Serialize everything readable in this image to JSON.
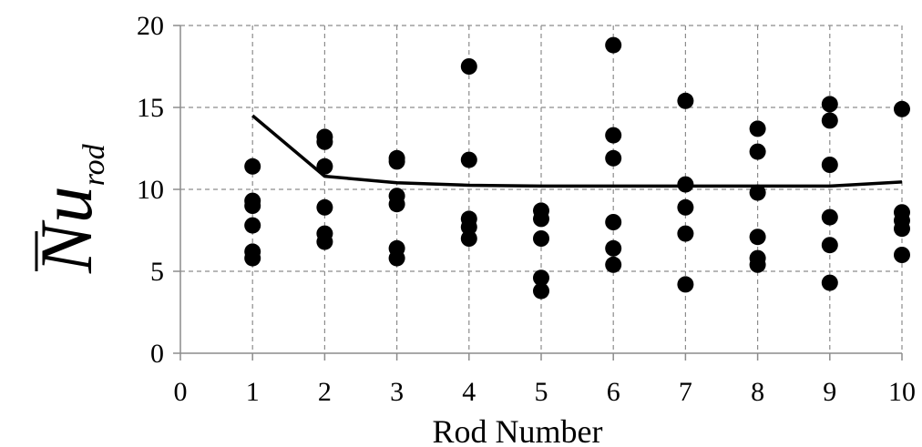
{
  "chart_data": {
    "type": "scatter",
    "title": "",
    "xlabel": "Rod Number",
    "ylabel": "Nu",
    "ylabel_subscript": "rod",
    "xlim": [
      0,
      10
    ],
    "ylim": [
      0,
      20
    ],
    "xticks": [
      "0",
      "1",
      "2",
      "3",
      "4",
      "5",
      "6",
      "7",
      "8",
      "9",
      "10"
    ],
    "yticks": [
      "0",
      "5",
      "10",
      "15",
      "20"
    ],
    "grid": true,
    "points": [
      {
        "x": 1,
        "y": 11.4
      },
      {
        "x": 1,
        "y": 9.3
      },
      {
        "x": 1,
        "y": 9.0
      },
      {
        "x": 1,
        "y": 7.8
      },
      {
        "x": 1,
        "y": 6.2
      },
      {
        "x": 1,
        "y": 5.8
      },
      {
        "x": 2,
        "y": 13.2
      },
      {
        "x": 2,
        "y": 12.9
      },
      {
        "x": 2,
        "y": 11.4
      },
      {
        "x": 2,
        "y": 8.9
      },
      {
        "x": 2,
        "y": 7.3
      },
      {
        "x": 2,
        "y": 6.8
      },
      {
        "x": 3,
        "y": 11.9
      },
      {
        "x": 3,
        "y": 11.7
      },
      {
        "x": 3,
        "y": 9.6
      },
      {
        "x": 3,
        "y": 9.1
      },
      {
        "x": 3,
        "y": 6.4
      },
      {
        "x": 3,
        "y": 5.8
      },
      {
        "x": 4,
        "y": 17.5
      },
      {
        "x": 4,
        "y": 11.8
      },
      {
        "x": 4,
        "y": 8.2
      },
      {
        "x": 4,
        "y": 7.7
      },
      {
        "x": 4,
        "y": 7.0
      },
      {
        "x": 5,
        "y": 8.7
      },
      {
        "x": 5,
        "y": 8.2
      },
      {
        "x": 5,
        "y": 7.0
      },
      {
        "x": 5,
        "y": 4.6
      },
      {
        "x": 5,
        "y": 3.8
      },
      {
        "x": 6,
        "y": 18.8
      },
      {
        "x": 6,
        "y": 13.3
      },
      {
        "x": 6,
        "y": 11.9
      },
      {
        "x": 6,
        "y": 8.0
      },
      {
        "x": 6,
        "y": 6.4
      },
      {
        "x": 6,
        "y": 5.4
      },
      {
        "x": 7,
        "y": 15.4
      },
      {
        "x": 7,
        "y": 10.3
      },
      {
        "x": 7,
        "y": 8.9
      },
      {
        "x": 7,
        "y": 7.3
      },
      {
        "x": 7,
        "y": 4.2
      },
      {
        "x": 8,
        "y": 13.7
      },
      {
        "x": 8,
        "y": 12.3
      },
      {
        "x": 8,
        "y": 9.8
      },
      {
        "x": 8,
        "y": 7.1
      },
      {
        "x": 8,
        "y": 5.8
      },
      {
        "x": 8,
        "y": 5.4
      },
      {
        "x": 9,
        "y": 15.2
      },
      {
        "x": 9,
        "y": 14.2
      },
      {
        "x": 9,
        "y": 11.5
      },
      {
        "x": 9,
        "y": 8.3
      },
      {
        "x": 9,
        "y": 6.6
      },
      {
        "x": 9,
        "y": 4.3
      },
      {
        "x": 10,
        "y": 14.9
      },
      {
        "x": 10,
        "y": 8.6
      },
      {
        "x": 10,
        "y": 8.1
      },
      {
        "x": 10,
        "y": 7.6
      },
      {
        "x": 10,
        "y": 6.0
      }
    ],
    "line": {
      "x": [
        1,
        2,
        3,
        4,
        5,
        6,
        7,
        8,
        9,
        10
      ],
      "y": [
        14.5,
        10.8,
        10.4,
        10.25,
        10.2,
        10.2,
        10.2,
        10.2,
        10.2,
        10.45
      ]
    }
  }
}
